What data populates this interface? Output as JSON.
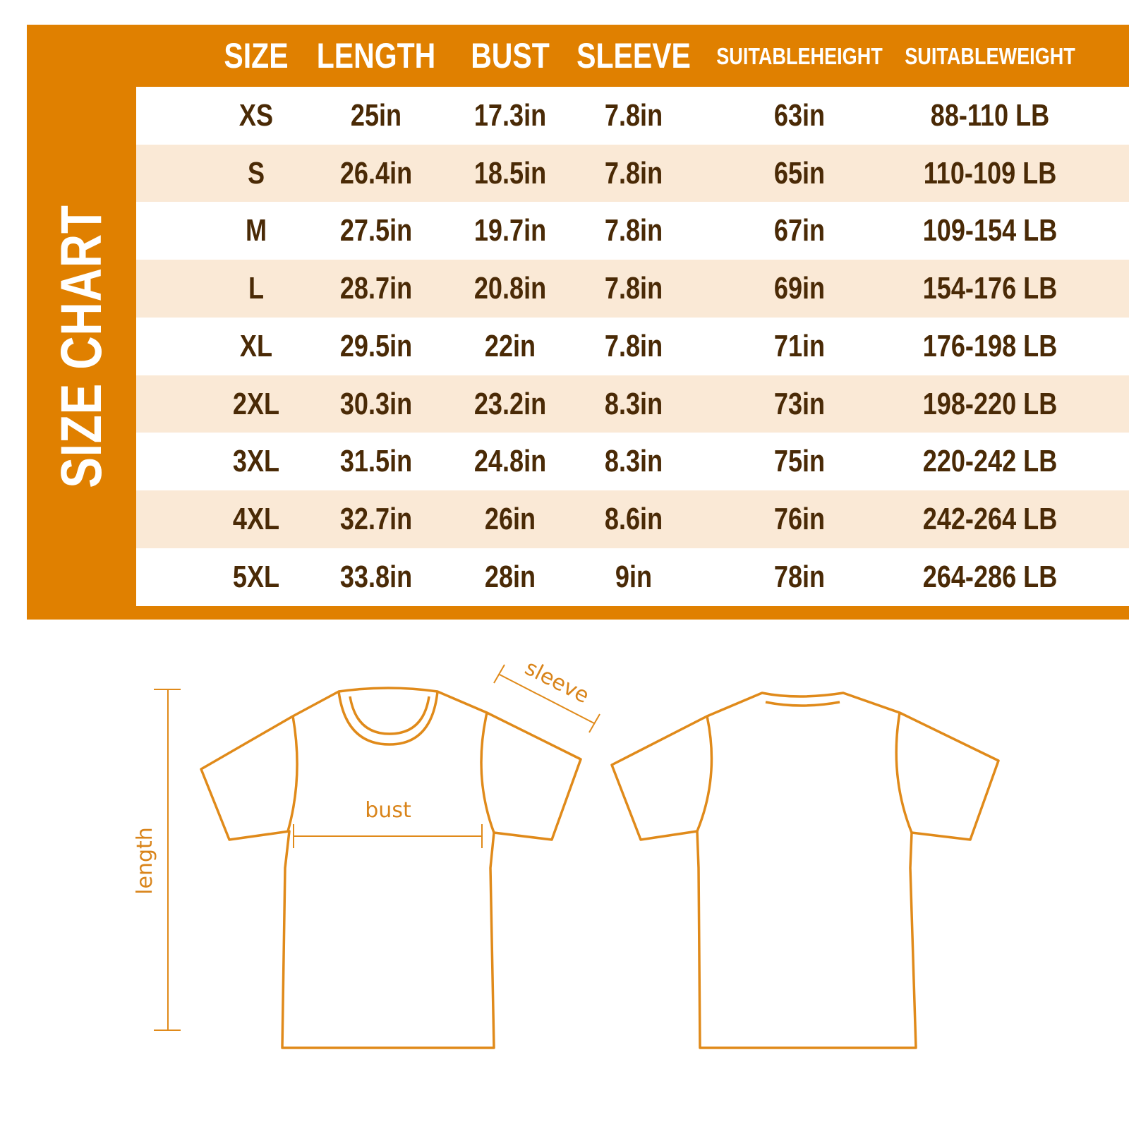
{
  "title": "SIZE CHART",
  "colors": {
    "accent": "#e08000",
    "stripe": "#fae9d6",
    "text": "#4a2a06",
    "outline": "#e08a1a"
  },
  "columns": [
    "SIZE",
    "LENGTH",
    "BUST",
    "SLEEVE",
    "SUITABLE HEIGHT",
    "SUITABLE WEIGHT"
  ],
  "column_lines": [
    [
      "SIZE"
    ],
    [
      "LENGTH"
    ],
    [
      "BUST"
    ],
    [
      "SLEEVE"
    ],
    [
      "SUITABLE",
      "HEIGHT"
    ],
    [
      "SUITABLE",
      "WEIGHT"
    ]
  ],
  "rows": [
    [
      "XS",
      "25in",
      "17.3in",
      "7.8in",
      "63in",
      "88-110 LB"
    ],
    [
      "S",
      "26.4in",
      "18.5in",
      "7.8in",
      "65in",
      "110-109 LB"
    ],
    [
      "M",
      "27.5in",
      "19.7in",
      "7.8in",
      "67in",
      "109-154 LB"
    ],
    [
      "L",
      "28.7in",
      "20.8in",
      "7.8in",
      "69in",
      "154-176 LB"
    ],
    [
      "XL",
      "29.5in",
      "22in",
      "7.8in",
      "71in",
      "176-198 LB"
    ],
    [
      "2XL",
      "30.3in",
      "23.2in",
      "8.3in",
      "73in",
      "198-220 LB"
    ],
    [
      "3XL",
      "31.5in",
      "24.8in",
      "8.3in",
      "75in",
      "220-242 LB"
    ],
    [
      "4XL",
      "32.7in",
      "26in",
      "8.6in",
      "76in",
      "242-264 LB"
    ],
    [
      "5XL",
      "33.8in",
      "28in",
      "9in",
      "78in",
      "264-286 LB"
    ]
  ],
  "diagram": {
    "length_label": "length",
    "bust_label": "bust",
    "sleeve_label": "sleeve"
  }
}
